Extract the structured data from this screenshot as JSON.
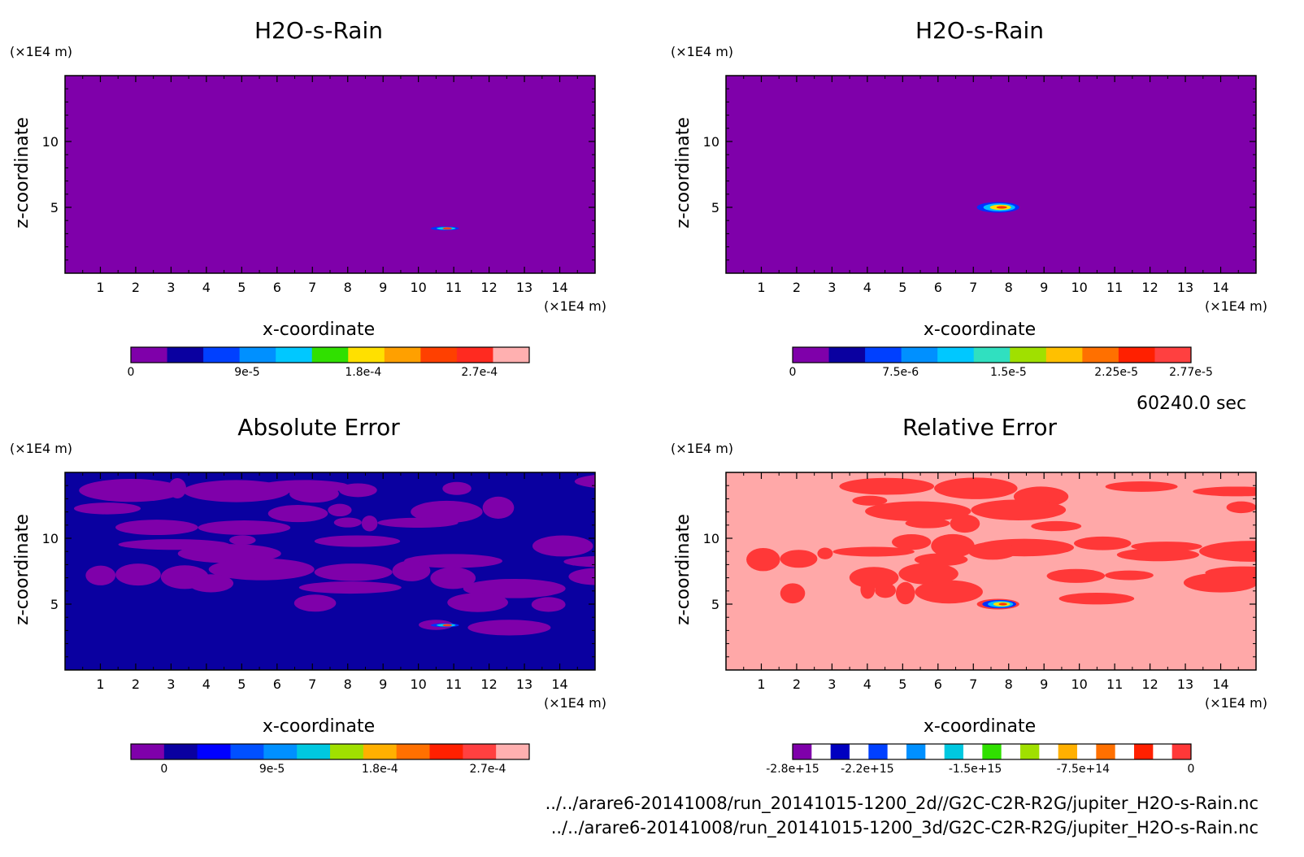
{
  "info": {
    "time_label": "60240.0 sec",
    "file_2d": "../../arare6-20141008/run_20141015-1200_2d//G2C-C2R-R2G/jupiter_H2O-s-Rain.nc",
    "file_3d": "../../arare6-20141008/run_20141015-1200_3d/G2C-C2R-R2G/jupiter_H2O-s-Rain.nc"
  },
  "chart_data": [
    {
      "type": "heatmap",
      "title": "H2O-s-Rain",
      "xlabel": "x-coordinate",
      "ylabel": "z-coordinate",
      "x_unit": "(×1E4 m)",
      "y_unit": "(×1E4 m)",
      "xlim": [
        0,
        15
      ],
      "ylim": [
        0,
        15
      ],
      "xticks": [
        "1",
        "2",
        "3",
        "4",
        "5",
        "6",
        "7",
        "8",
        "9",
        "10",
        "11",
        "12",
        "13",
        "14"
      ],
      "yticks": [
        "5",
        "10"
      ],
      "background_color": "#7f00aa",
      "features": [
        {
          "kind": "blob",
          "x": 10.75,
          "z": 3.4,
          "rx": 0.4,
          "rz": 0.15,
          "colors": [
            "#0030ff",
            "#00d0e0",
            "#ff4020"
          ]
        }
      ],
      "colorbar": {
        "tick_labels": [
          "0",
          "9e-5",
          "1.8e-4",
          "2.7e-4"
        ],
        "tick_fractions": [
          0,
          0.2917,
          0.5833,
          0.875
        ],
        "colors": [
          "#7f00aa",
          "#0a00a0",
          "#0040ff",
          "#0090ff",
          "#00c8ff",
          "#30e000",
          "#ffe000",
          "#ffa000",
          "#ff4000",
          "#ff2a20",
          "#ffb0b0"
        ]
      }
    },
    {
      "type": "heatmap",
      "title": "H2O-s-Rain",
      "xlabel": "x-coordinate",
      "ylabel": "z-coordinate",
      "x_unit": "(×1E4 m)",
      "y_unit": "(×1E4 m)",
      "xlim": [
        0,
        15
      ],
      "ylim": [
        0,
        15
      ],
      "xticks": [
        "1",
        "2",
        "3",
        "4",
        "5",
        "6",
        "7",
        "8",
        "9",
        "10",
        "11",
        "12",
        "13",
        "14"
      ],
      "yticks": [
        "5",
        "10"
      ],
      "background_color": "#7f00aa",
      "features": [
        {
          "kind": "blob",
          "x": 7.7,
          "z": 5.0,
          "rx": 0.6,
          "rz": 0.4,
          "colors": [
            "#0030ff",
            "#00c0ff",
            "#ffe000",
            "#ff3000"
          ]
        }
      ],
      "colorbar": {
        "tick_labels": [
          "0",
          "7.5e-6",
          "1.5e-5",
          "2.25e-5",
          "2.77e-5"
        ],
        "tick_fractions": [
          0,
          0.2708,
          0.5417,
          0.8125,
          1.0
        ],
        "colors": [
          "#7f00aa",
          "#0a00a0",
          "#0040ff",
          "#0090ff",
          "#00c8ff",
          "#30e0c0",
          "#a0e000",
          "#ffc000",
          "#ff7000",
          "#ff2000",
          "#ff4040"
        ]
      }
    },
    {
      "type": "heatmap",
      "title": "Absolute Error",
      "xlabel": "x-coordinate",
      "ylabel": "z-coordinate",
      "x_unit": "(×1E4 m)",
      "y_unit": "(×1E4 m)",
      "xlim": [
        0,
        15
      ],
      "ylim": [
        0,
        15
      ],
      "xticks": [
        "1",
        "2",
        "3",
        "4",
        "5",
        "6",
        "7",
        "8",
        "9",
        "10",
        "11",
        "12",
        "13",
        "14"
      ],
      "yticks": [
        "5",
        "10"
      ],
      "background_color": "#0a00a0",
      "patch_color": "#7f00aa",
      "features": [
        {
          "kind": "blob",
          "x": 10.75,
          "z": 3.4,
          "rx": 0.4,
          "rz": 0.15,
          "colors": [
            "#0030ff",
            "#00d0e0",
            "#ff4020"
          ]
        }
      ],
      "colorbar": {
        "tick_labels": [
          "0",
          "9e-5",
          "1.8e-4",
          "2.7e-4"
        ],
        "tick_fractions": [
          0.0833,
          0.3542,
          0.625,
          0.8958
        ],
        "colors": [
          "#7f00aa",
          "#0a00a0",
          "#0000ff",
          "#0050ff",
          "#0090ff",
          "#00c8e0",
          "#a0e000",
          "#ffb000",
          "#ff7000",
          "#ff2000",
          "#ff4040",
          "#ffb0b0"
        ]
      }
    },
    {
      "type": "heatmap",
      "title": "Relative Error",
      "xlabel": "x-coordinate",
      "ylabel": "z-coordinate",
      "x_unit": "(×1E4 m)",
      "y_unit": "(×1E4 m)",
      "xlim": [
        0,
        15
      ],
      "ylim": [
        0,
        15
      ],
      "xticks": [
        "1",
        "2",
        "3",
        "4",
        "5",
        "6",
        "7",
        "8",
        "9",
        "10",
        "11",
        "12",
        "13",
        "14"
      ],
      "yticks": [
        "5",
        "10"
      ],
      "background_color": "#ffa8a8",
      "patch_color": "#ff3838",
      "features": [
        {
          "kind": "blob",
          "x": 7.7,
          "z": 5.0,
          "rx": 0.6,
          "rz": 0.4,
          "colors": [
            "#ff3838",
            "#0030ff",
            "#00c0ff",
            "#ffe000",
            "#ff3000"
          ]
        }
      ],
      "colorbar": {
        "tick_labels": [
          "-2.8e+15",
          "-2.2e+15",
          "-1.5e+15",
          "-7.5e+14",
          "0"
        ],
        "tick_fractions": [
          0,
          0.1875,
          0.4583,
          0.7292,
          1.0
        ],
        "colors": [
          "#7f00aa",
          "#ffffff",
          "#0000c0",
          "#ffffff",
          "#0040ff",
          "#ffffff",
          "#0090ff",
          "#ffffff",
          "#00c8e0",
          "#ffffff",
          "#30e000",
          "#ffffff",
          "#a0e000",
          "#ffffff",
          "#ffb000",
          "#ffffff",
          "#ff7000",
          "#ffffff",
          "#ff2000",
          "#ffffff",
          "#ff3838"
        ]
      }
    }
  ]
}
